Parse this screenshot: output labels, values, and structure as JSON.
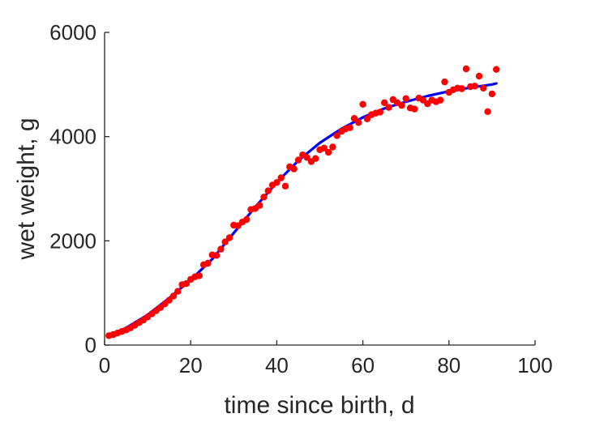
{
  "chart_data": {
    "type": "scatter",
    "title": "",
    "xlabel": "time since birth, d",
    "ylabel": "wet weight, g",
    "xlim": [
      0,
      100
    ],
    "ylim": [
      0,
      6000
    ],
    "xticks": [
      0,
      20,
      40,
      60,
      80,
      100
    ],
    "yticks": [
      0,
      2000,
      4000,
      6000
    ],
    "xtick_labels": [
      "0",
      "20",
      "40",
      "60",
      "80",
      "100"
    ],
    "ytick_labels": [
      "0",
      "2000",
      "4000",
      "6000"
    ],
    "grid": false,
    "legend": "none",
    "series": [
      {
        "kind": "points",
        "color": "#ff0000",
        "points": [
          [
            1,
            180
          ],
          [
            2,
            200
          ],
          [
            3,
            230
          ],
          [
            4,
            260
          ],
          [
            5,
            290
          ],
          [
            6,
            330
          ],
          [
            7,
            380
          ],
          [
            8,
            430
          ],
          [
            9,
            480
          ],
          [
            10,
            540
          ],
          [
            11,
            600
          ],
          [
            12,
            660
          ],
          [
            13,
            720
          ],
          [
            14,
            790
          ],
          [
            15,
            860
          ],
          [
            16,
            940
          ],
          [
            17,
            1030
          ],
          [
            18,
            1160
          ],
          [
            19,
            1180
          ],
          [
            20,
            1260
          ],
          [
            21,
            1310
          ],
          [
            22,
            1330
          ],
          [
            23,
            1540
          ],
          [
            24,
            1570
          ],
          [
            25,
            1730
          ],
          [
            26,
            1720
          ],
          [
            27,
            1840
          ],
          [
            28,
            1980
          ],
          [
            29,
            2060
          ],
          [
            30,
            2300
          ],
          [
            31,
            2290
          ],
          [
            32,
            2360
          ],
          [
            33,
            2410
          ],
          [
            34,
            2600
          ],
          [
            35,
            2620
          ],
          [
            36,
            2680
          ],
          [
            37,
            2840
          ],
          [
            38,
            2960
          ],
          [
            39,
            3070
          ],
          [
            40,
            3120
          ],
          [
            41,
            3210
          ],
          [
            42,
            3050
          ],
          [
            43,
            3420
          ],
          [
            44,
            3380
          ],
          [
            45,
            3550
          ],
          [
            46,
            3650
          ],
          [
            47,
            3600
          ],
          [
            48,
            3520
          ],
          [
            49,
            3580
          ],
          [
            50,
            3750
          ],
          [
            51,
            3780
          ],
          [
            52,
            3700
          ],
          [
            53,
            3800
          ],
          [
            54,
            4020
          ],
          [
            55,
            4100
          ],
          [
            56,
            4150
          ],
          [
            57,
            4170
          ],
          [
            58,
            4350
          ],
          [
            59,
            4270
          ],
          [
            60,
            4620
          ],
          [
            61,
            4340
          ],
          [
            62,
            4420
          ],
          [
            63,
            4450
          ],
          [
            64,
            4470
          ],
          [
            65,
            4650
          ],
          [
            66,
            4560
          ],
          [
            67,
            4710
          ],
          [
            68,
            4650
          ],
          [
            69,
            4600
          ],
          [
            70,
            4730
          ],
          [
            71,
            4550
          ],
          [
            72,
            4530
          ],
          [
            73,
            4740
          ],
          [
            74,
            4700
          ],
          [
            75,
            4630
          ],
          [
            76,
            4700
          ],
          [
            77,
            4670
          ],
          [
            78,
            4700
          ],
          [
            79,
            5050
          ],
          [
            80,
            4850
          ],
          [
            81,
            4900
          ],
          [
            82,
            4930
          ],
          [
            83,
            4920
          ],
          [
            84,
            5300
          ],
          [
            85,
            4960
          ],
          [
            86,
            4970
          ],
          [
            87,
            5160
          ],
          [
            88,
            4930
          ],
          [
            89,
            4480
          ],
          [
            90,
            4820
          ],
          [
            91,
            5290
          ]
        ]
      },
      {
        "kind": "curve",
        "color": "#0000ff",
        "points": [
          [
            1,
            190
          ],
          [
            5,
            330
          ],
          [
            10,
            580
          ],
          [
            15,
            900
          ],
          [
            20,
            1250
          ],
          [
            25,
            1650
          ],
          [
            30,
            2150
          ],
          [
            35,
            2650
          ],
          [
            40,
            3120
          ],
          [
            45,
            3540
          ],
          [
            50,
            3880
          ],
          [
            55,
            4150
          ],
          [
            60,
            4370
          ],
          [
            65,
            4540
          ],
          [
            70,
            4670
          ],
          [
            75,
            4780
          ],
          [
            80,
            4870
          ],
          [
            85,
            4940
          ],
          [
            90,
            5000
          ],
          [
            91,
            5020
          ]
        ]
      }
    ]
  }
}
